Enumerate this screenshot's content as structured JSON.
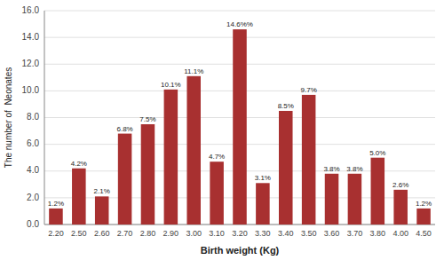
{
  "chart_data": {
    "type": "bar",
    "categories": [
      "2.20",
      "2.50",
      "2.60",
      "2.70",
      "2.80",
      "2.90",
      "3.00",
      "3.10",
      "3.20",
      "3.30",
      "3.40",
      "3.50",
      "3.60",
      "3.70",
      "3.80",
      "4.00",
      "4.50"
    ],
    "values": [
      1.2,
      4.2,
      2.1,
      6.8,
      7.5,
      10.1,
      11.1,
      4.7,
      14.6,
      3.1,
      8.5,
      9.7,
      3.8,
      3.8,
      5.0,
      2.6,
      1.2
    ],
    "value_labels": [
      "1.2%",
      "4.2%",
      "2.1%",
      "6.8%",
      "7.5%",
      "10.1%",
      "11.1%",
      "4.7%",
      "14.6%%",
      "3.1%",
      "8.5%",
      "9.7%",
      "3.8%",
      "3.8%",
      "5.0%",
      "2.6%",
      "1.2%"
    ],
    "color": "#A83030",
    "xlabel": "Birth weight (Kg)",
    "ylabel": "The number of  Neonates",
    "ylim": [
      0,
      16.0
    ],
    "yticks": [
      {
        "value": 0.0,
        "label": "0.0"
      },
      {
        "value": 2.0,
        "label": "2.0"
      },
      {
        "value": 4.0,
        "label": "4.0"
      },
      {
        "value": 6.0,
        "label": "6.0"
      },
      {
        "value": 8.0,
        "label": "8.0"
      },
      {
        "value": 10.0,
        "label": "10.0"
      },
      {
        "value": 12.0,
        "label": "12.0"
      },
      {
        "value": 14.0,
        "label": "14.0"
      },
      {
        "value": 16.0,
        "label": "16.0"
      }
    ],
    "grid": true,
    "data_labels": true
  }
}
